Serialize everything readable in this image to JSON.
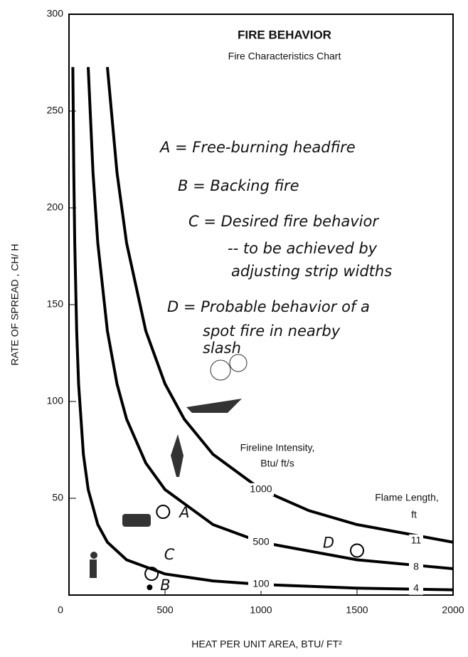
{
  "chart_data": {
    "type": "line",
    "title": "FIRE BEHAVIOR",
    "subtitle": "Fire Characteristics Chart",
    "x_label": "HEAT PER UNIT AREA, BTU/ FT²",
    "y_label": "RATE OF SPREAD , CH/ H",
    "xlim": [
      0,
      2000
    ],
    "ylim": [
      0,
      300
    ],
    "xticks": [
      0,
      500,
      1000,
      1500,
      2000
    ],
    "yticks": [
      50,
      100,
      150,
      200,
      250,
      300
    ],
    "series_title": [
      "Fireline Intensity,",
      "Btu/ ft/s"
    ],
    "flame_title": [
      "Flame Length,",
      "ft"
    ],
    "series": [
      {
        "name": "1000",
        "flame_length": 11,
        "color": "#000000",
        "x": [
          200,
          250,
          300,
          400,
          500,
          600,
          750,
          1000,
          1250,
          1500,
          2000
        ],
        "values": [
          272.7,
          218.2,
          181.8,
          136.4,
          109.1,
          90.9,
          72.7,
          54.5,
          43.6,
          36.4,
          27.3
        ]
      },
      {
        "name": "500",
        "flame_length": 8,
        "color": "#000000",
        "x": [
          100,
          125,
          150,
          200,
          250,
          300,
          400,
          500,
          750,
          1000,
          1500,
          2000
        ],
        "values": [
          272.7,
          218.2,
          181.8,
          136.4,
          109.1,
          90.9,
          68.2,
          54.5,
          36.4,
          27.3,
          18.2,
          13.6
        ]
      },
      {
        "name": "100",
        "flame_length": 4,
        "color": "#000000",
        "x": [
          20,
          25,
          30,
          40,
          50,
          75,
          100,
          150,
          200,
          300,
          500,
          750,
          1000,
          1500,
          2000
        ],
        "values": [
          272.7,
          218.2,
          181.8,
          136.4,
          109.1,
          72.7,
          54.5,
          36.4,
          27.3,
          18.2,
          10.9,
          7.3,
          5.5,
          3.6,
          2.7
        ]
      }
    ],
    "points": [
      {
        "label": "A",
        "x": 490,
        "y": 43
      },
      {
        "label": "B",
        "x": 420,
        "y": 4
      },
      {
        "label": "C",
        "x": 430,
        "y": 11
      },
      {
        "label": "D",
        "x": 1500,
        "y": 23
      }
    ],
    "notes": [
      "A = Free-burning headfire",
      "B = Backing fire",
      "C = Desired fire behavior",
      "-- to be achieved by",
      "adjusting strip widths",
      "D = Probable behavior of a",
      "spot fire in nearby",
      "slash"
    ]
  }
}
